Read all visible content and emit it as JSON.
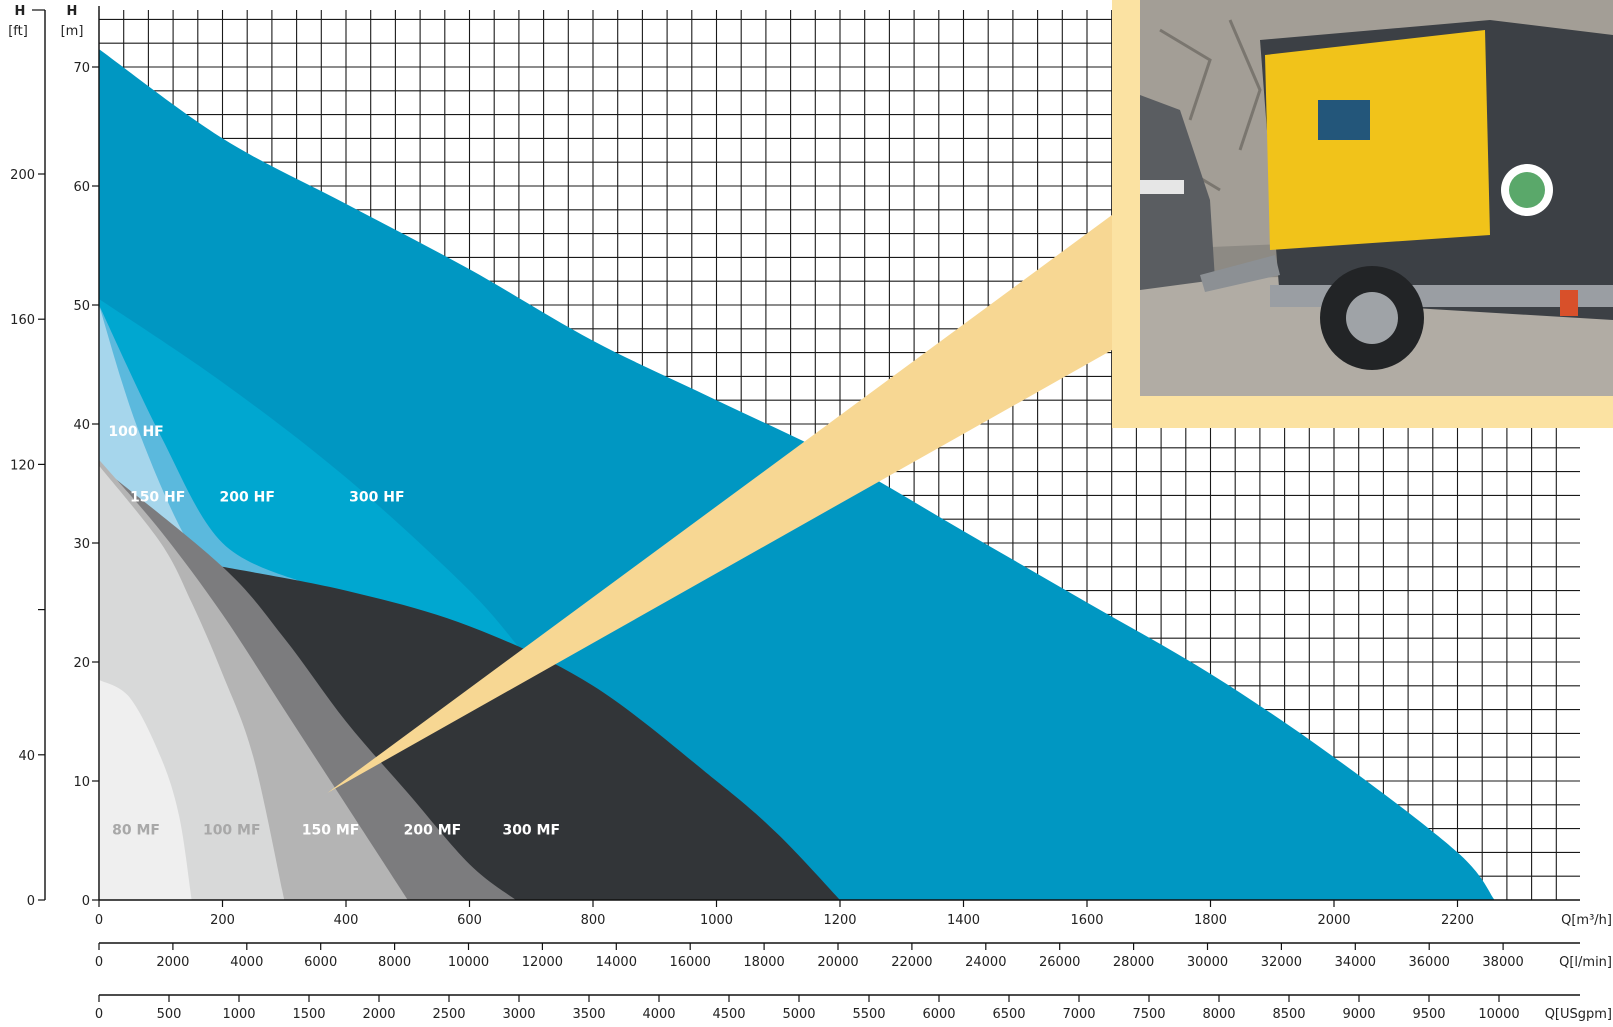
{
  "chart_data": {
    "type": "area",
    "title": "",
    "grid": true,
    "axes": {
      "h_ft": {
        "label": "H",
        "unit": "[ft]",
        "range": [
          0,
          236
        ],
        "ticks": [
          0,
          40,
          120,
          160,
          200
        ]
      },
      "h_m": {
        "label": "H",
        "unit": "[m]",
        "range": [
          0,
          72
        ],
        "ticks": [
          0,
          10,
          20,
          30,
          40,
          50,
          60,
          70
        ]
      },
      "q_m3h": {
        "label": "Q[m³/h]",
        "range": [
          0,
          2400
        ],
        "ticks": [
          0,
          200,
          400,
          600,
          800,
          1000,
          1200,
          1400,
          1600,
          1800,
          2000,
          2200
        ]
      },
      "q_lmin": {
        "label": "Q[l/min]",
        "range": [
          0,
          40000
        ],
        "ticks": [
          0,
          2000,
          4000,
          6000,
          8000,
          10000,
          12000,
          14000,
          16000,
          18000,
          20000,
          22000,
          24000,
          26000,
          28000,
          30000,
          32000,
          34000,
          36000,
          38000
        ]
      },
      "q_usgpm": {
        "label": "Q[USgpm]",
        "range": [
          0,
          10567
        ],
        "ticks": [
          0,
          500,
          1000,
          1500,
          2000,
          2500,
          3000,
          3500,
          4000,
          4500,
          5000,
          5500,
          6000,
          6500,
          7000,
          7500,
          8000,
          8500,
          9000,
          9500,
          10000
        ]
      }
    },
    "series": [
      {
        "name": "300 HF",
        "color": "#0097c2",
        "label_color": "#ffffff",
        "label_at": [
          450,
          33.5
        ],
        "points": [
          [
            0,
            71.5
          ],
          [
            200,
            64
          ],
          [
            400,
            58.5
          ],
          [
            600,
            53
          ],
          [
            800,
            47
          ],
          [
            1000,
            42
          ],
          [
            1200,
            37
          ],
          [
            1400,
            31
          ],
          [
            1600,
            25
          ],
          [
            1800,
            19
          ],
          [
            2000,
            12
          ],
          [
            2200,
            4
          ],
          [
            2260,
            0
          ]
        ]
      },
      {
        "name": "200 HF",
        "color": "#00a7d0",
        "label_color": "#ffffff",
        "label_at": [
          240,
          33.5
        ],
        "points": [
          [
            0,
            50.5
          ],
          [
            200,
            43.5
          ],
          [
            400,
            35.5
          ],
          [
            600,
            26
          ],
          [
            700,
            20
          ],
          [
            760,
            17
          ]
        ]
      },
      {
        "name": "150 HF",
        "color": "#5bb9dd",
        "label_color": "#ffffff",
        "label_at": [
          95,
          33.5
        ],
        "points": [
          [
            0,
            50
          ],
          [
            100,
            39
          ],
          [
            200,
            30
          ],
          [
            340,
            26.5
          ]
        ]
      },
      {
        "name": "100 HF",
        "color": "#a6d6ec",
        "label_color": "#ffffff",
        "label_at": [
          60,
          39
        ],
        "points": [
          [
            0,
            50
          ],
          [
            60,
            40
          ],
          [
            140,
            30.5
          ],
          [
            195,
            28
          ]
        ]
      },
      {
        "name": "300 MF",
        "color": "#323538",
        "label_color": "#ffffff",
        "label_at": [
          700,
          5.5
        ],
        "points": [
          [
            200,
            28
          ],
          [
            400,
            26
          ],
          [
            600,
            23
          ],
          [
            800,
            18
          ],
          [
            1000,
            10
          ],
          [
            1100,
            5.5
          ],
          [
            1200,
            0
          ]
        ]
      },
      {
        "name": "200 MF",
        "color": "#7c7c7e",
        "label_color": "#ffffff",
        "label_at": [
          540,
          5.5
        ],
        "points": [
          [
            0,
            36.5
          ],
          [
            200,
            28
          ],
          [
            300,
            22
          ],
          [
            400,
            15
          ],
          [
            500,
            9
          ],
          [
            600,
            3
          ],
          [
            675,
            0
          ]
        ]
      },
      {
        "name": "150 MF",
        "color": "#b4b4b4",
        "label_color": "#ffffff",
        "label_at": [
          375,
          5.5
        ],
        "points": [
          [
            0,
            37
          ],
          [
            100,
            31
          ],
          [
            200,
            24
          ],
          [
            300,
            16
          ],
          [
            400,
            8
          ],
          [
            500,
            0
          ]
        ]
      },
      {
        "name": "100 MF",
        "color": "#d8d9d9",
        "label_color": "#a8a8a8",
        "label_at": [
          215,
          5.5
        ],
        "points": [
          [
            0,
            36.5
          ],
          [
            100,
            30
          ],
          [
            150,
            25
          ],
          [
            200,
            19
          ],
          [
            250,
            12
          ],
          [
            300,
            0
          ]
        ]
      },
      {
        "name": "80 MF",
        "color": "#efefef",
        "label_color": "#a8a8a8",
        "label_at": [
          60,
          5.5
        ],
        "points": [
          [
            0,
            18.5
          ],
          [
            50,
            17
          ],
          [
            100,
            12
          ],
          [
            130,
            7
          ],
          [
            150,
            0
          ]
        ]
      }
    ]
  },
  "photo": {
    "subject": "yellow-trailer-mounted-pump",
    "frame_color": "#fbe2a2",
    "callout_color": "#f7d793",
    "callout_tip_at": [
      370,
      9
    ]
  }
}
